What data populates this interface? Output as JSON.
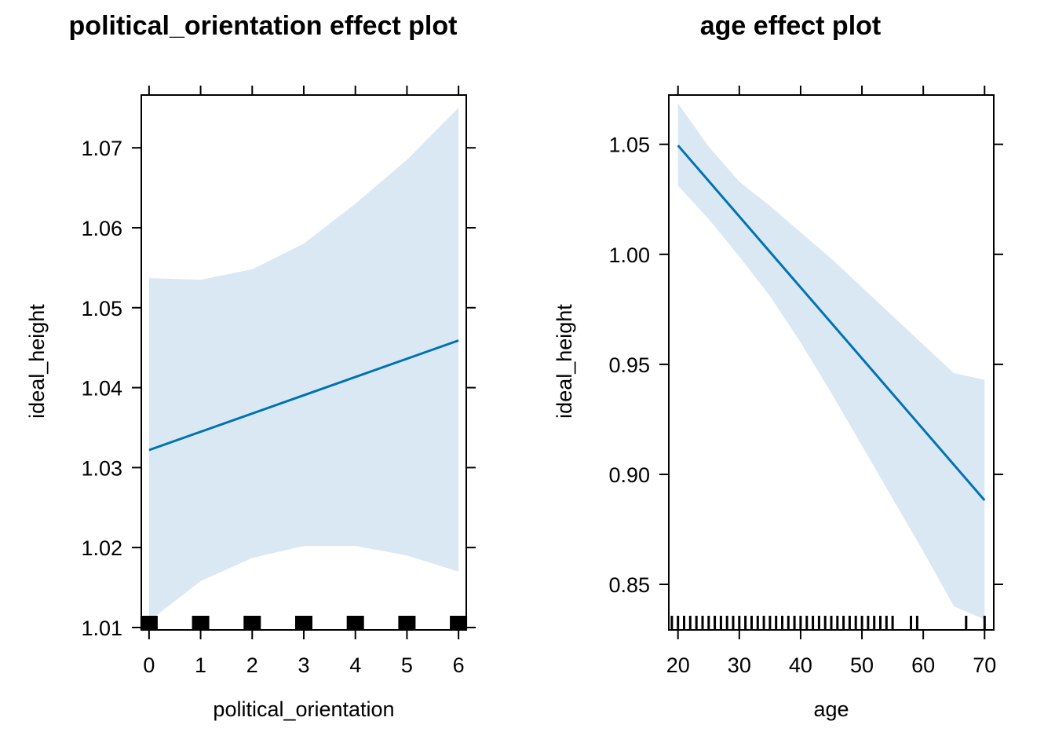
{
  "chart_data": [
    {
      "type": "line",
      "title": "political_orientation effect plot",
      "xlabel": "political_orientation",
      "ylabel": "ideal_height",
      "xlim": [
        -0.15,
        6.15
      ],
      "ylim": [
        1.0097,
        1.0766
      ],
      "x_ticks": [
        0,
        1,
        2,
        3,
        4,
        5,
        6
      ],
      "y_ticks": [
        1.01,
        1.02,
        1.03,
        1.04,
        1.05,
        1.06,
        1.07
      ],
      "y_tick_labels": [
        "1.01",
        "1.02",
        "1.03",
        "1.04",
        "1.05",
        "1.06",
        "1.07"
      ],
      "series": [
        {
          "x": [
            0,
            6
          ],
          "y": [
            1.0322,
            1.0459
          ]
        }
      ],
      "confidence_band": {
        "x": [
          0,
          1,
          2,
          3,
          4,
          5,
          6
        ],
        "lower": [
          1.0108,
          1.0158,
          1.0187,
          1.0202,
          1.0202,
          1.019,
          1.017
        ],
        "upper": [
          1.0537,
          1.0535,
          1.0548,
          1.058,
          1.063,
          1.0685,
          1.075
        ]
      },
      "rug": [
        0,
        1,
        2,
        3,
        4,
        5,
        6
      ],
      "line_color": "#0072B2",
      "band_color": "#DAE8F4",
      "grid": false
    },
    {
      "type": "line",
      "title": "age effect plot",
      "xlabel": "age",
      "ylabel": "ideal_height",
      "xlim": [
        18.5,
        71.5
      ],
      "ylim": [
        0.8293,
        1.0724
      ],
      "x_ticks": [
        20,
        30,
        40,
        50,
        60,
        70
      ],
      "y_ticks": [
        0.85,
        0.9,
        0.95,
        1.0,
        1.05
      ],
      "y_tick_labels": [
        "0.85",
        "0.90",
        "0.95",
        "1.00",
        "1.05"
      ],
      "series": [
        {
          "x": [
            20,
            70
          ],
          "y": [
            1.0495,
            0.8882
          ]
        }
      ],
      "confidence_band": {
        "x": [
          20,
          25,
          30,
          35,
          40,
          45,
          50,
          55,
          60,
          65,
          70
        ],
        "lower": [
          1.0312,
          1.016,
          0.999,
          0.981,
          0.96,
          0.937,
          0.913,
          0.889,
          0.865,
          0.84,
          0.834
        ],
        "upper": [
          1.0686,
          1.049,
          1.033,
          1.022,
          1.01,
          0.998,
          0.985,
          0.972,
          0.959,
          0.946,
          0.943
        ]
      },
      "rug": [
        19,
        20,
        21,
        22,
        23,
        24,
        25,
        26,
        27,
        28,
        29,
        30,
        31,
        32,
        33,
        34,
        35,
        36,
        37,
        38,
        39,
        40,
        41,
        42,
        43,
        44,
        45,
        46,
        47,
        48,
        49,
        50,
        51,
        52,
        53,
        54,
        55,
        58,
        59,
        67,
        70
      ],
      "line_color": "#0072B2",
      "band_color": "#DAE8F4",
      "grid": false
    }
  ]
}
